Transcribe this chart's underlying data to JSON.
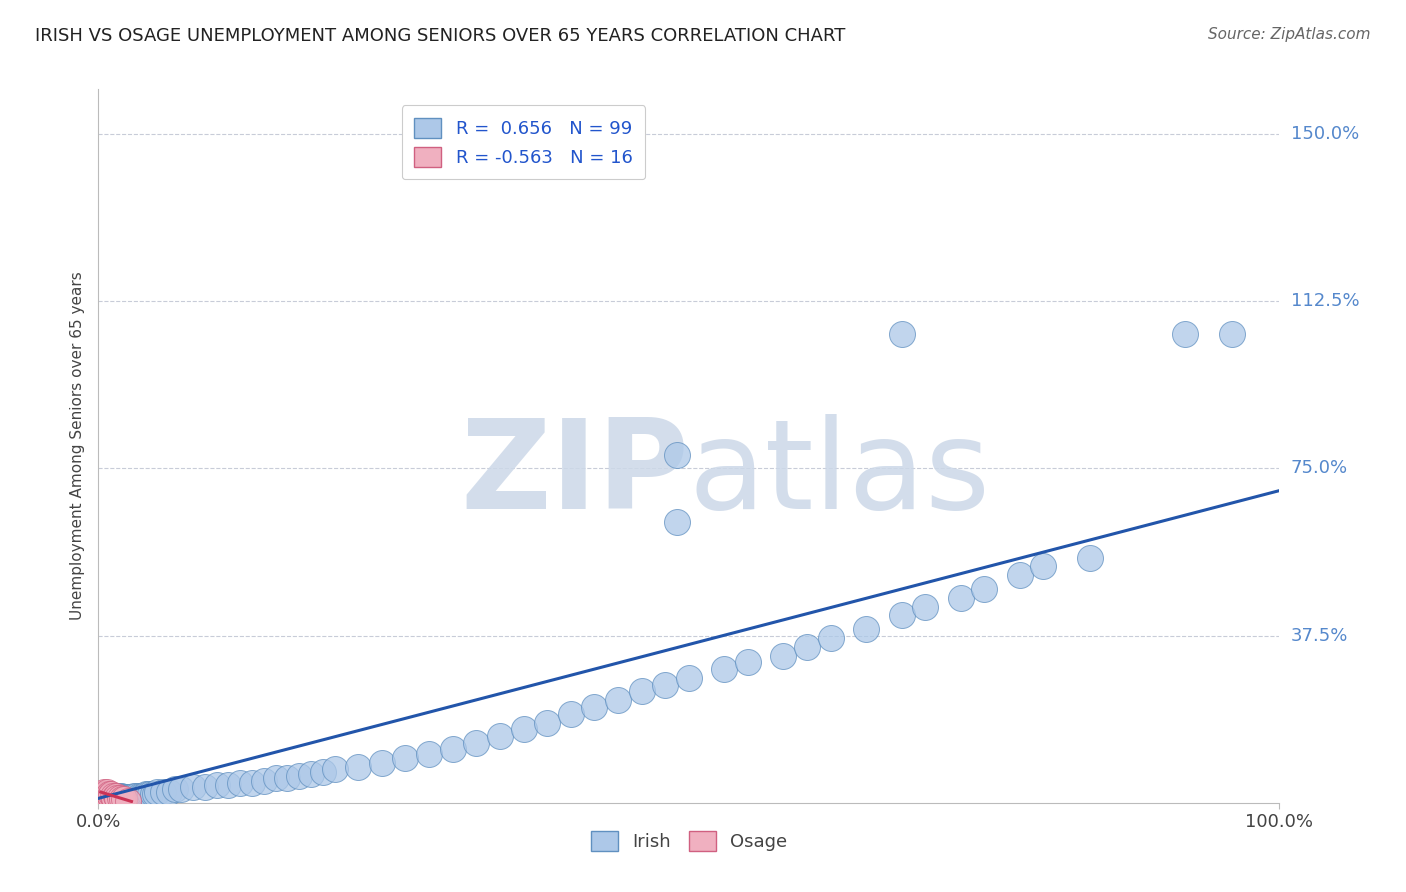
{
  "title": "IRISH VS OSAGE UNEMPLOYMENT AMONG SENIORS OVER 65 YEARS CORRELATION CHART",
  "source": "Source: ZipAtlas.com",
  "ylabel": "Unemployment Among Seniors over 65 years",
  "xlim": [
    0.0,
    1.0
  ],
  "ylim": [
    0.0,
    1.6
  ],
  "yticks": [
    0.0,
    0.375,
    0.75,
    1.125,
    1.5
  ],
  "ytick_labels": [
    "",
    "37.5%",
    "75.0%",
    "112.5%",
    "150.0%"
  ],
  "xticks": [
    0.0,
    1.0
  ],
  "xtick_labels": [
    "0.0%",
    "100.0%"
  ],
  "irish_R": 0.656,
  "irish_N": 99,
  "osage_R": -0.563,
  "osage_N": 16,
  "irish_color": "#adc8e8",
  "osage_color": "#f0b0c0",
  "irish_edge_color": "#6090c0",
  "osage_edge_color": "#d06080",
  "irish_line_color": "#2255aa",
  "osage_line_color": "#cc3355",
  "watermark_color": "#ccd8e8",
  "background_color": "#ffffff",
  "grid_color": "#c8ccd8",
  "irish_x": [
    0.003,
    0.005,
    0.005,
    0.007,
    0.007,
    0.008,
    0.008,
    0.009,
    0.009,
    0.01,
    0.01,
    0.011,
    0.011,
    0.012,
    0.012,
    0.013,
    0.013,
    0.014,
    0.014,
    0.015,
    0.015,
    0.016,
    0.016,
    0.017,
    0.017,
    0.018,
    0.018,
    0.019,
    0.019,
    0.02,
    0.021,
    0.022,
    0.023,
    0.024,
    0.025,
    0.026,
    0.027,
    0.028,
    0.03,
    0.032,
    0.034,
    0.036,
    0.038,
    0.04,
    0.042,
    0.044,
    0.046,
    0.048,
    0.05,
    0.055,
    0.06,
    0.065,
    0.07,
    0.08,
    0.09,
    0.1,
    0.11,
    0.12,
    0.13,
    0.14,
    0.15,
    0.16,
    0.17,
    0.18,
    0.19,
    0.2,
    0.22,
    0.24,
    0.26,
    0.28,
    0.3,
    0.32,
    0.34,
    0.36,
    0.38,
    0.4,
    0.42,
    0.44,
    0.46,
    0.48,
    0.5,
    0.53,
    0.55,
    0.58,
    0.6,
    0.62,
    0.65,
    0.68,
    0.7,
    0.73,
    0.75,
    0.78,
    0.8,
    0.84,
    0.68,
    0.92,
    0.96,
    0.49,
    0.49
  ],
  "irish_y": [
    0.01,
    0.01,
    0.015,
    0.01,
    0.015,
    0.01,
    0.015,
    0.01,
    0.015,
    0.01,
    0.015,
    0.01,
    0.015,
    0.01,
    0.015,
    0.01,
    0.015,
    0.01,
    0.015,
    0.01,
    0.015,
    0.01,
    0.015,
    0.01,
    0.015,
    0.01,
    0.015,
    0.01,
    0.015,
    0.01,
    0.012,
    0.012,
    0.012,
    0.012,
    0.012,
    0.012,
    0.012,
    0.012,
    0.015,
    0.015,
    0.015,
    0.015,
    0.015,
    0.02,
    0.02,
    0.02,
    0.02,
    0.02,
    0.025,
    0.025,
    0.025,
    0.03,
    0.03,
    0.035,
    0.035,
    0.04,
    0.04,
    0.045,
    0.045,
    0.05,
    0.055,
    0.055,
    0.06,
    0.065,
    0.07,
    0.075,
    0.08,
    0.09,
    0.1,
    0.11,
    0.12,
    0.135,
    0.15,
    0.165,
    0.18,
    0.2,
    0.215,
    0.23,
    0.25,
    0.265,
    0.28,
    0.3,
    0.315,
    0.33,
    0.35,
    0.37,
    0.39,
    0.42,
    0.44,
    0.46,
    0.48,
    0.51,
    0.53,
    0.55,
    1.05,
    1.05,
    1.05,
    0.78,
    0.63
  ],
  "osage_x": [
    0.003,
    0.005,
    0.006,
    0.007,
    0.008,
    0.009,
    0.01,
    0.011,
    0.012,
    0.013,
    0.015,
    0.016,
    0.018,
    0.02,
    0.022,
    0.025
  ],
  "osage_y": [
    0.02,
    0.025,
    0.02,
    0.025,
    0.015,
    0.02,
    0.015,
    0.02,
    0.015,
    0.01,
    0.015,
    0.01,
    0.01,
    0.008,
    0.008,
    0.005
  ],
  "irish_line_x0": 0.0,
  "irish_line_x1": 1.0,
  "irish_line_y0": 0.01,
  "irish_line_y1": 0.7,
  "osage_line_x0": 0.002,
  "osage_line_x1": 0.028,
  "osage_line_y0": 0.024,
  "osage_line_y1": 0.003
}
